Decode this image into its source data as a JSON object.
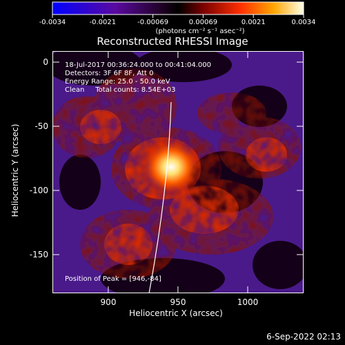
{
  "colorbar": {
    "ticks": [
      "-0.0034",
      "-0.0021",
      "-0.00069",
      "0.00069",
      "0.0021",
      "0.0034"
    ],
    "units": "(photons cm⁻² s⁻¹ asec⁻²)"
  },
  "plot": {
    "title": "Reconstructed RHESSI Image",
    "info": {
      "time": "18-Jul-2017 00:36:24.000 to 00:41:04.000",
      "detectors": "Detectors: 3F 6F 8F, Att 0",
      "energy": "Energy Range: 25.0 - 50.0 keV",
      "clean": "Clean     Total counts: 8.54E+03"
    },
    "peak": "Position of Peak = [946,-84]",
    "xlabel": "Heliocentric X (arcsec)",
    "ylabel": "Heliocentric Y (arcsec)",
    "xticks": [
      "900",
      "950",
      "1000"
    ],
    "yticks": [
      "0",
      "-50",
      "-100",
      "-150"
    ]
  },
  "chart_data": {
    "type": "heatmap",
    "xlim": [
      860,
      1040
    ],
    "ylim": [
      -185,
      5
    ],
    "peak": [
      946,
      -84
    ],
    "colorscale": [
      "#0000ff",
      "#000000",
      "#ff6600",
      "#ffffff"
    ],
    "zlim": [
      -0.0034,
      0.0034
    ]
  },
  "footer": {
    "date": "6-Sep-2022 02:13"
  }
}
